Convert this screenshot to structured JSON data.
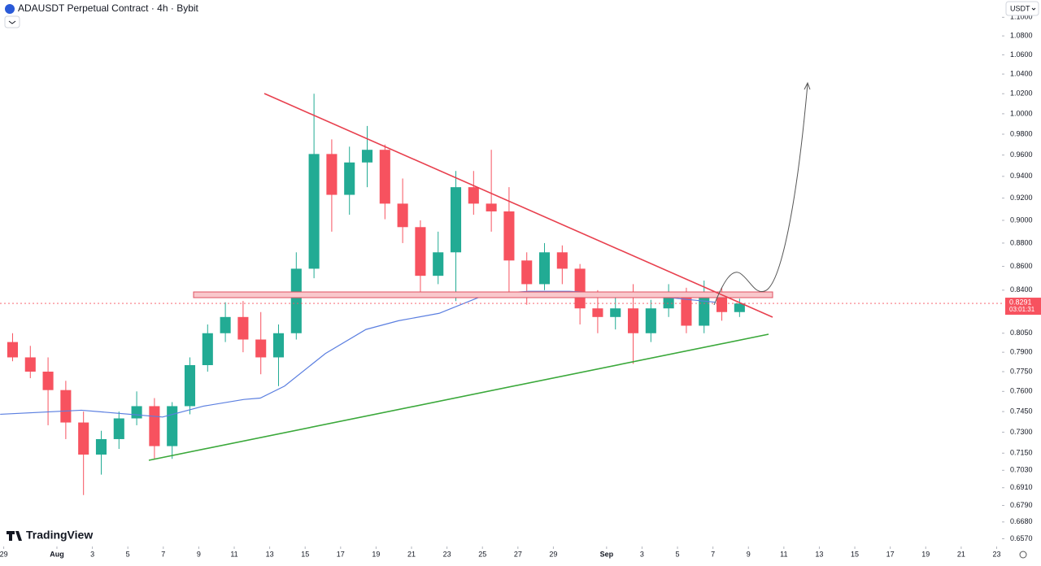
{
  "chart_data": {
    "type": "candlestick",
    "title": "ADAUSDT Perpetual Contract · 4h · Bybit",
    "currency": "USDT",
    "brand": "TradingView",
    "log": true,
    "ylim": [
      0.652,
      1.119
    ],
    "yticks": [
      {
        "value": 1.1,
        "label": "1.1000"
      },
      {
        "value": 1.08,
        "label": "1.0800"
      },
      {
        "value": 1.06,
        "label": "1.0600"
      },
      {
        "value": 1.04,
        "label": "1.0400"
      },
      {
        "value": 1.02,
        "label": "1.0200"
      },
      {
        "value": 1.0,
        "label": "1.0000"
      },
      {
        "value": 0.98,
        "label": "0.9800"
      },
      {
        "value": 0.96,
        "label": "0.9600"
      },
      {
        "value": 0.94,
        "label": "0.9400"
      },
      {
        "value": 0.92,
        "label": "0.9200"
      },
      {
        "value": 0.9,
        "label": "0.9000"
      },
      {
        "value": 0.88,
        "label": "0.8800"
      },
      {
        "value": 0.86,
        "label": "0.8600"
      },
      {
        "value": 0.84,
        "label": "0.8400"
      },
      {
        "value": 0.805,
        "label": "0.8050"
      },
      {
        "value": 0.79,
        "label": "0.7900"
      },
      {
        "value": 0.775,
        "label": "0.7750"
      },
      {
        "value": 0.76,
        "label": "0.7600"
      },
      {
        "value": 0.745,
        "label": "0.7450"
      },
      {
        "value": 0.73,
        "label": "0.7300"
      },
      {
        "value": 0.715,
        "label": "0.7150"
      },
      {
        "value": 0.703,
        "label": "0.7030"
      },
      {
        "value": 0.691,
        "label": "0.6910"
      },
      {
        "value": 0.679,
        "label": "0.6790"
      },
      {
        "value": 0.668,
        "label": "0.6680"
      },
      {
        "value": 0.657,
        "label": "0.6570"
      }
    ],
    "xlim": [
      -3.21,
      53.3
    ],
    "xticks": [
      {
        "value": -3,
        "label": "29"
      },
      {
        "value": 0,
        "label": "Aug"
      },
      {
        "value": 2,
        "label": "3"
      },
      {
        "value": 4,
        "label": "5"
      },
      {
        "value": 6,
        "label": "7"
      },
      {
        "value": 8,
        "label": "9"
      },
      {
        "value": 10,
        "label": "11"
      },
      {
        "value": 12,
        "label": "13"
      },
      {
        "value": 14,
        "label": "15"
      },
      {
        "value": 16,
        "label": "17"
      },
      {
        "value": 18,
        "label": "19"
      },
      {
        "value": 20,
        "label": "21"
      },
      {
        "value": 22,
        "label": "23"
      },
      {
        "value": 24,
        "label": "25"
      },
      {
        "value": 26,
        "label": "27"
      },
      {
        "value": 28,
        "label": "29"
      },
      {
        "value": 31,
        "label": "Sep"
      },
      {
        "value": 33,
        "label": "3"
      },
      {
        "value": 35,
        "label": "5"
      },
      {
        "value": 37,
        "label": "7"
      },
      {
        "value": 39,
        "label": "9"
      },
      {
        "value": 41,
        "label": "11"
      },
      {
        "value": 43,
        "label": "13"
      },
      {
        "value": 45,
        "label": "15"
      },
      {
        "value": 47,
        "label": "17"
      },
      {
        "value": 49,
        "label": "19"
      },
      {
        "value": 51,
        "label": "21"
      },
      {
        "value": 53,
        "label": "23"
      }
    ],
    "up_color": "#22ab94",
    "down_color": "#f7525f",
    "candles": {
      "x": [
        -3,
        -2,
        -1,
        0,
        1,
        2,
        3,
        4,
        5,
        6,
        7,
        8,
        9,
        10,
        11,
        12,
        13,
        14,
        15,
        16,
        17,
        18,
        19,
        20,
        21,
        22,
        23,
        24,
        25,
        26,
        27,
        28,
        29,
        30,
        31,
        32,
        33,
        34,
        35,
        36,
        37,
        38
      ],
      "open": [
        0.798,
        0.786,
        0.775,
        0.761,
        0.737,
        0.714,
        0.725,
        0.74,
        0.749,
        0.72,
        0.749,
        0.78,
        0.805,
        0.818,
        0.8,
        0.786,
        0.805,
        0.858,
        0.961,
        0.923,
        0.953,
        0.965,
        0.915,
        0.894,
        0.852,
        0.872,
        0.93,
        0.915,
        0.908,
        0.865,
        0.845,
        0.872,
        0.858,
        0.825,
        0.818,
        0.825,
        0.805,
        0.825,
        0.838,
        0.811,
        0.838,
        0.822
      ],
      "high": [
        0.805,
        0.795,
        0.786,
        0.768,
        0.745,
        0.731,
        0.745,
        0.76,
        0.755,
        0.752,
        0.786,
        0.812,
        0.83,
        0.831,
        0.822,
        0.812,
        0.872,
        1.02,
        0.975,
        0.968,
        0.988,
        0.97,
        0.938,
        0.9,
        0.89,
        0.945,
        0.945,
        0.965,
        0.93,
        0.872,
        0.88,
        0.878,
        0.862,
        0.84,
        0.838,
        0.845,
        0.832,
        0.845,
        0.842,
        0.848,
        0.842,
        0.833
      ],
      "low": [
        0.783,
        0.77,
        0.735,
        0.725,
        0.686,
        0.7,
        0.718,
        0.735,
        0.711,
        0.711,
        0.743,
        0.775,
        0.798,
        0.79,
        0.773,
        0.764,
        0.8,
        0.85,
        0.89,
        0.905,
        0.93,
        0.901,
        0.88,
        0.838,
        0.845,
        0.831,
        0.905,
        0.89,
        0.838,
        0.828,
        0.84,
        0.845,
        0.812,
        0.805,
        0.808,
        0.781,
        0.798,
        0.818,
        0.805,
        0.805,
        0.815,
        0.818
      ],
      "close": [
        0.786,
        0.775,
        0.761,
        0.737,
        0.714,
        0.725,
        0.74,
        0.749,
        0.72,
        0.749,
        0.78,
        0.805,
        0.818,
        0.8,
        0.786,
        0.805,
        0.858,
        0.961,
        0.923,
        0.953,
        0.965,
        0.915,
        0.894,
        0.852,
        0.872,
        0.93,
        0.915,
        0.908,
        0.865,
        0.845,
        0.872,
        0.858,
        0.825,
        0.818,
        0.825,
        0.805,
        0.825,
        0.838,
        0.811,
        0.838,
        0.822,
        0.829
      ]
    },
    "ma": {
      "color": "#5b7fe0",
      "x": [
        -3.2,
        1.38,
        5.96,
        8.26,
        10.55,
        11.47,
        12.84,
        15.14,
        17.43,
        19.27,
        21.56,
        24.31,
        26.61,
        28.9,
        31.65,
        34.4,
        37.16
      ],
      "values": [
        0.743,
        0.746,
        0.741,
        0.749,
        0.754,
        0.755,
        0.764,
        0.789,
        0.808,
        0.815,
        0.821,
        0.837,
        0.839,
        0.839,
        0.837,
        0.834,
        0.83
      ]
    },
    "last_price": {
      "value": 0.8291,
      "label": "0.8291"
    },
    "countdown": "03:01:31"
  }
}
